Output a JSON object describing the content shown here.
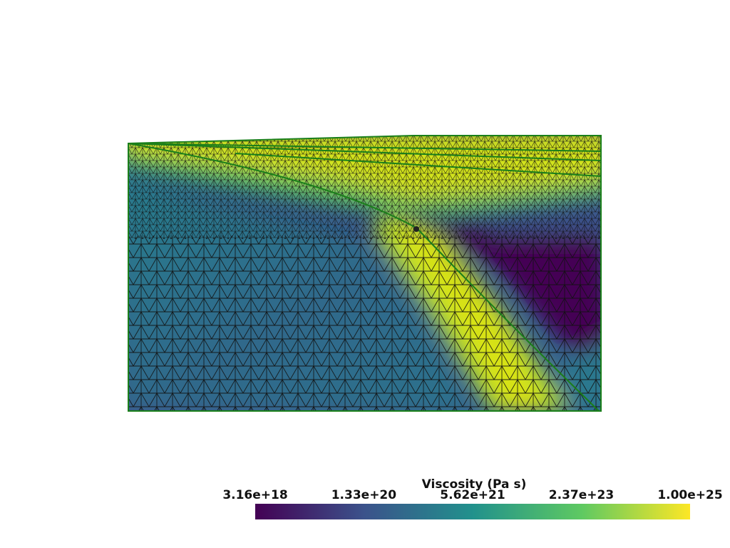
{
  "chart_data": {
    "type": "mesh-colorbar",
    "colorbar_title": "Viscosity (Pa s)",
    "log_scale": true,
    "colormap": [
      "#440154",
      "#3b528b",
      "#21918c",
      "#5ec962",
      "#fde725"
    ],
    "clim": [
      3.16e+18,
      1e+25
    ],
    "ticks": [
      {
        "value": 3.16e+18,
        "label": "3.16e+18"
      },
      {
        "value": 1.33e+20,
        "label": "1.33e+20"
      },
      {
        "value": 5.62e+21,
        "label": "5.62e+21"
      },
      {
        "value": 2.37e+23,
        "label": "2.37e+23"
      },
      {
        "value": 1e+25,
        "label": "1.00e+25"
      }
    ]
  }
}
